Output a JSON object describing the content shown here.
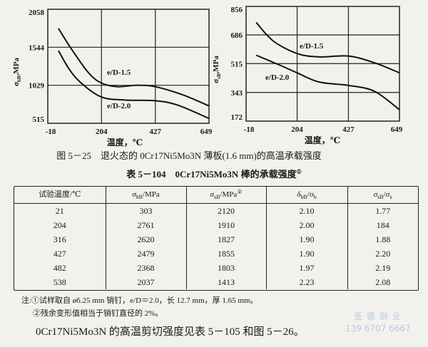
{
  "chart_data": [
    {
      "type": "line",
      "ylabel": "σbB,MPa",
      "ylabel_sym": "σ",
      "ylabel_sub": "bB",
      "ylabel_unit": ",MPa",
      "xlabel": "温度，℃",
      "xlim": [
        -18,
        649
      ],
      "ylim": [
        515,
        2058
      ],
      "xticks": [
        "-18",
        "204",
        "427",
        "649"
      ],
      "yticks": [
        "515",
        "1029",
        "1544",
        "2058"
      ],
      "grid": true,
      "series": [
        {
          "name": "e/D-1.5",
          "x": [
            26,
            75,
            150,
            204,
            270,
            350,
            427,
            540,
            649
          ],
          "y": [
            1800,
            1544,
            1200,
            1060,
            1010,
            1030,
            1010,
            900,
            750
          ]
        },
        {
          "name": "e/D-2.0",
          "x": [
            26,
            70,
            120,
            204,
            300,
            427,
            520,
            649
          ],
          "y": [
            1500,
            1250,
            1060,
            870,
            830,
            820,
            760,
            580
          ]
        }
      ]
    },
    {
      "type": "line",
      "ylabel": "σsB,MPa",
      "ylabel_sym": "σ",
      "ylabel_sub": "sB",
      "ylabel_unit": ",MPa",
      "xlabel": "温度，℃",
      "xlim": [
        -18,
        649
      ],
      "ylim": [
        172,
        856
      ],
      "xticks": [
        "-18",
        "204",
        "427",
        "649"
      ],
      "yticks": [
        "172",
        "343",
        "515",
        "686",
        "856"
      ],
      "grid": true,
      "series": [
        {
          "name": "e/D-1.5",
          "x": [
            26,
            100,
            204,
            300,
            427,
            540,
            649
          ],
          "y": [
            760,
            650,
            575,
            555,
            560,
            520,
            460
          ]
        },
        {
          "name": "e/D-2.0",
          "x": [
            26,
            130,
            204,
            300,
            427,
            540,
            649
          ],
          "y": [
            565,
            505,
            460,
            405,
            385,
            350,
            240
          ]
        }
      ]
    }
  ],
  "figure_caption": "图 5－25　退火态的 0Cr17Ni5Mo3N 薄板(1.6 mm)的高温承载强度",
  "table": {
    "title": "表 5－104　0Cr17Ni5Mo3N 棒的承载强度",
    "title_mark": "①",
    "headers": [
      {
        "text": "试验温度/℃"
      },
      {
        "sym": "σ",
        "sub": "bB",
        "unit": "/MPa",
        "mark": ""
      },
      {
        "sym": "σ",
        "sub": "sB",
        "unit": "/MPa",
        "mark": "②"
      },
      {
        "sym": "δ",
        "sub": "bB",
        "unit": "/σ",
        "sub2": "b"
      },
      {
        "sym": "σ",
        "sub": "sB",
        "unit": "/σ",
        "sub2": "s"
      }
    ],
    "rows": [
      [
        "21",
        "303",
        "2120",
        "2.10",
        "1.77"
      ],
      [
        "204",
        "2761",
        "1910",
        "2.00",
        "184"
      ],
      [
        "316",
        "2620",
        "1827",
        "1.90",
        "1.88"
      ],
      [
        "427",
        "2479",
        "1855",
        "1.90",
        "2.20"
      ],
      [
        "482",
        "2368",
        "1803",
        "1.97",
        "2.19"
      ],
      [
        "538",
        "2037",
        "1413",
        "2.23",
        "2.08"
      ]
    ]
  },
  "notes": [
    "注:①试样取自 ø6.25 mm 销钉，e/D＝2.0，长 12.7 mm，厚 1.65 mm。",
    "②残余变形值相当于销钉直径的 2%。"
  ],
  "paragraph": "0Cr17Ni5Mo3N 的高温剪切强度见表 5－105 和图 5－26。",
  "watermark": {
    "line1": "圣 德 钢 业",
    "line2": "139 6707 6667",
    "color": "#b8c9e4"
  }
}
